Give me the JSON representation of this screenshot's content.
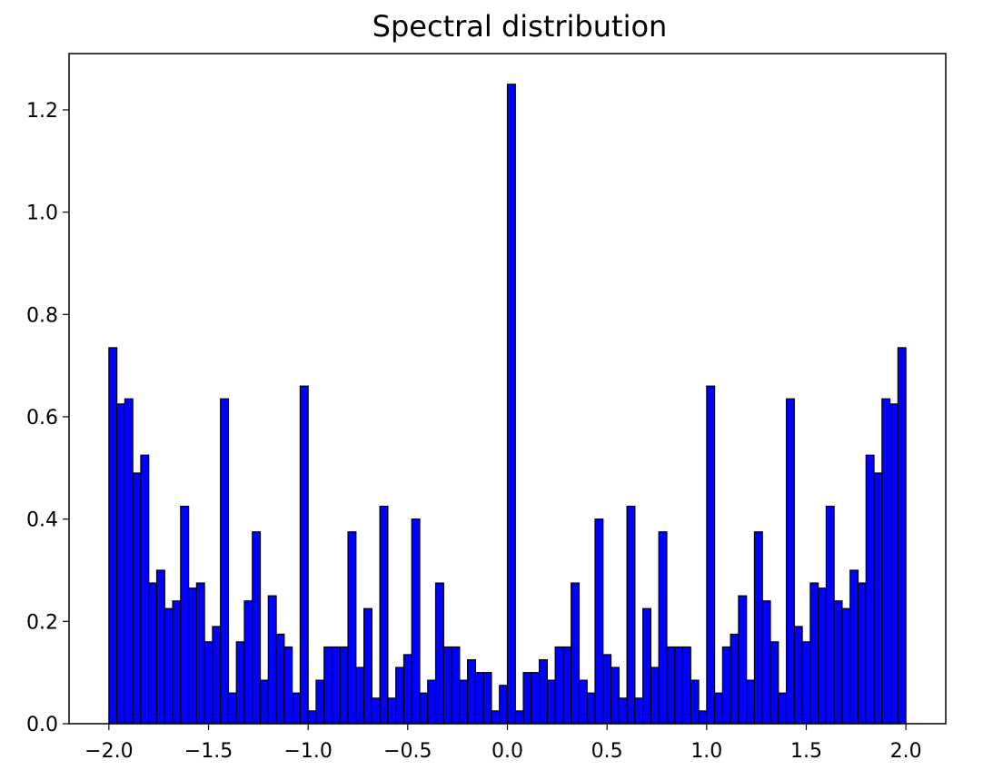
{
  "chart_data": {
    "type": "bar",
    "title": "Spectral distribution",
    "xlabel": "",
    "ylabel": "",
    "xlim": [
      -2.2,
      2.2
    ],
    "ylim": [
      0.0,
      1.31
    ],
    "bin_start": -2.0,
    "bin_width": 0.04,
    "bar_color": "#0000ff",
    "edge_color": "#000000",
    "grid": false,
    "legend": "none",
    "x_ticks": [
      -2.0,
      -1.5,
      -1.0,
      -0.5,
      0.0,
      0.5,
      1.0,
      1.5,
      2.0
    ],
    "x_tick_labels": [
      "−2.0",
      "−1.5",
      "−1.0",
      "−0.5",
      "0.0",
      "0.5",
      "1.0",
      "1.5",
      "2.0"
    ],
    "y_ticks": [
      0.0,
      0.2,
      0.4,
      0.6,
      0.8,
      1.0,
      1.2
    ],
    "y_tick_labels": [
      "0.0",
      "0.2",
      "0.4",
      "0.6",
      "0.8",
      "1.0",
      "1.2"
    ],
    "values": [
      0.735,
      0.625,
      0.635,
      0.49,
      0.525,
      0.275,
      0.3,
      0.225,
      0.24,
      0.425,
      0.265,
      0.275,
      0.16,
      0.19,
      0.635,
      0.06,
      0.16,
      0.24,
      0.375,
      0.085,
      0.25,
      0.175,
      0.15,
      0.06,
      0.66,
      0.025,
      0.085,
      0.15,
      0.15,
      0.15,
      0.375,
      0.11,
      0.225,
      0.05,
      0.425,
      0.05,
      0.11,
      0.135,
      0.4,
      0.06,
      0.085,
      0.275,
      0.15,
      0.15,
      0.085,
      0.125,
      0.1,
      0.1,
      0.025,
      0.075,
      1.25,
      0.025,
      0.1,
      0.1,
      0.125,
      0.085,
      0.15,
      0.15,
      0.275,
      0.085,
      0.06,
      0.4,
      0.135,
      0.11,
      0.05,
      0.425,
      0.05,
      0.225,
      0.11,
      0.375,
      0.15,
      0.15,
      0.15,
      0.085,
      0.025,
      0.66,
      0.06,
      0.15,
      0.175,
      0.25,
      0.085,
      0.375,
      0.24,
      0.16,
      0.06,
      0.635,
      0.19,
      0.16,
      0.275,
      0.265,
      0.425,
      0.24,
      0.225,
      0.3,
      0.275,
      0.525,
      0.49,
      0.635,
      0.625,
      0.735
    ]
  }
}
